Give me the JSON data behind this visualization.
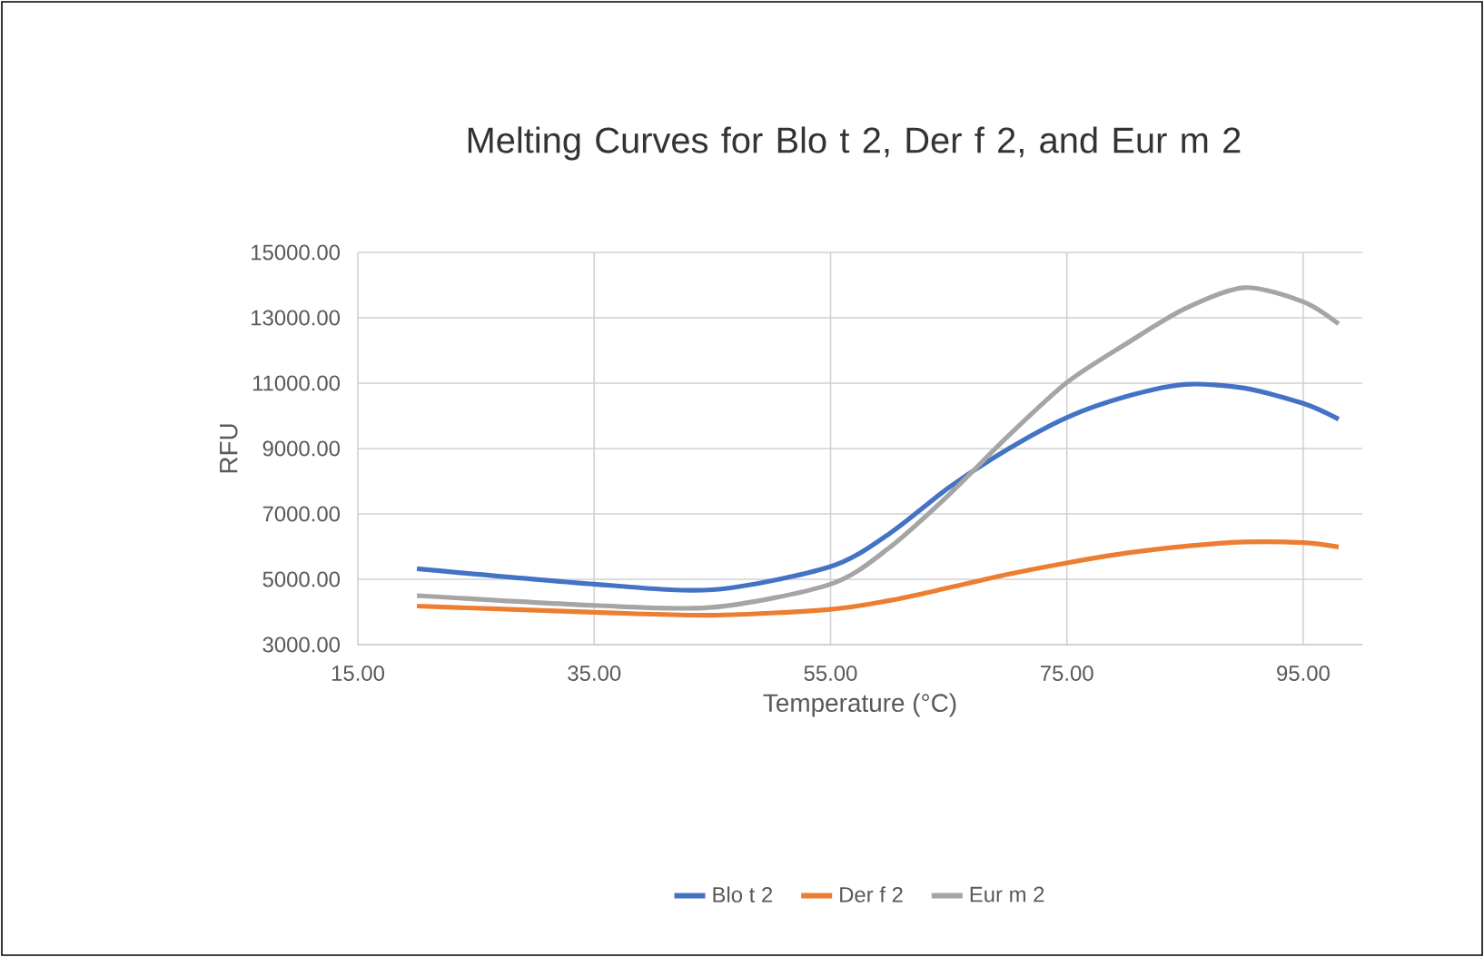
{
  "chart_data": {
    "type": "line",
    "title": "Melting Curves for Blo t 2, Der f 2, and Eur m 2",
    "xlabel": "Temperature (°C)",
    "ylabel": "RFU",
    "x": [
      20,
      35,
      45,
      55,
      60,
      65,
      70,
      75,
      80,
      85,
      90,
      95,
      98
    ],
    "series": [
      {
        "name": "Blo t 2",
        "color": "#4472c4",
        "values": [
          5320,
          4850,
          4680,
          5390,
          6400,
          7800,
          8980,
          9950,
          10590,
          10960,
          10850,
          10380,
          9900
        ]
      },
      {
        "name": "Der f 2",
        "color": "#ed7d31",
        "values": [
          4180,
          3990,
          3900,
          4080,
          4350,
          4740,
          5150,
          5500,
          5800,
          6010,
          6140,
          6120,
          5990
        ]
      },
      {
        "name": "Eur m 2",
        "color": "#a5a5a5",
        "values": [
          4500,
          4200,
          4140,
          4850,
          5970,
          7580,
          9370,
          11020,
          12200,
          13280,
          13920,
          13490,
          12810
        ]
      }
    ],
    "xlim": [
      15,
      100
    ],
    "ylim": [
      3000,
      15000
    ],
    "xticks": [
      {
        "value": 15,
        "label": "15.00"
      },
      {
        "value": 35,
        "label": "35.00"
      },
      {
        "value": 55,
        "label": "55.00"
      },
      {
        "value": 75,
        "label": "75.00"
      },
      {
        "value": 95,
        "label": "95.00"
      }
    ],
    "yticks": [
      {
        "value": 3000,
        "label": "3000.00"
      },
      {
        "value": 5000,
        "label": "5000.00"
      },
      {
        "value": 7000,
        "label": "7000.00"
      },
      {
        "value": 9000,
        "label": "9000.00"
      },
      {
        "value": 11000,
        "label": "11000.00"
      },
      {
        "value": 13000,
        "label": "13000.00"
      },
      {
        "value": 15000,
        "label": "15000.00"
      }
    ],
    "grid": true,
    "legend": "bottom",
    "marker": "none",
    "line_style": "solid"
  }
}
